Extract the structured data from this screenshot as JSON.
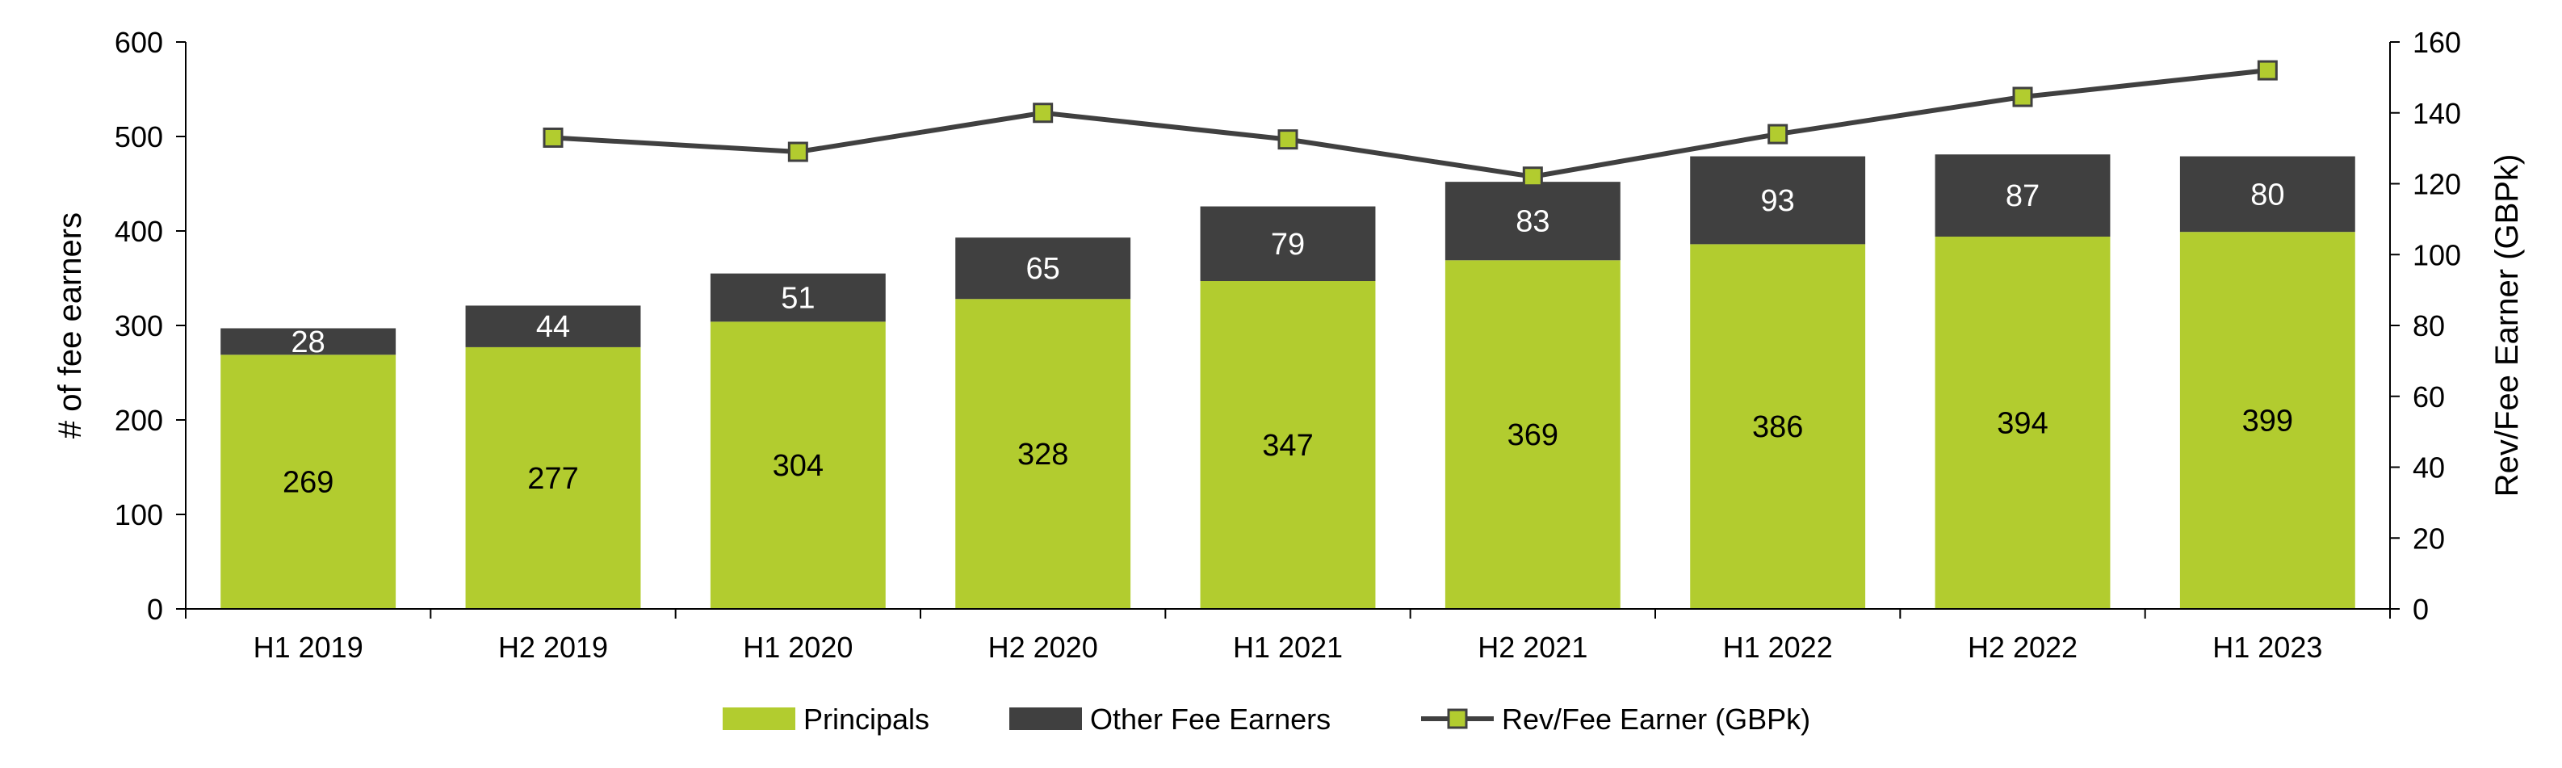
{
  "chart_data": {
    "type": "bar",
    "stacked": true,
    "categories": [
      "H1 2019",
      "H2 2019",
      "H1 2020",
      "H2 2020",
      "H1 2021",
      "H2 2021",
      "H1 2022",
      "H2 2022",
      "H1 2023"
    ],
    "series": [
      {
        "name": "Principals",
        "kind": "bar",
        "axis": "left",
        "color": "#b2cc2f",
        "label_color": "#000000",
        "values": [
          269,
          277,
          304,
          328,
          347,
          369,
          386,
          394,
          399
        ]
      },
      {
        "name": "Other Fee Earners",
        "kind": "bar",
        "axis": "left",
        "color": "#404040",
        "label_color": "#ffffff",
        "values": [
          28,
          44,
          51,
          65,
          79,
          83,
          93,
          87,
          80
        ]
      },
      {
        "name": "Rev/Fee Earner (GBPk)",
        "kind": "line",
        "axis": "right",
        "color": "#404040",
        "marker_color": "#b2cc2f",
        "values": [
          null,
          133,
          129,
          140,
          132.5,
          122,
          134,
          144.5,
          152
        ]
      }
    ],
    "ylabel": "# of fee earners",
    "ylim": [
      0,
      600
    ],
    "yticks": [
      0,
      100,
      200,
      300,
      400,
      500,
      600
    ],
    "y2label": "Rev/Fee Earner (GBPk)",
    "y2lim": [
      0,
      160
    ],
    "y2ticks": [
      0,
      20,
      40,
      60,
      80,
      100,
      120,
      140,
      160
    ],
    "grid": false,
    "legend_position": "bottom"
  }
}
